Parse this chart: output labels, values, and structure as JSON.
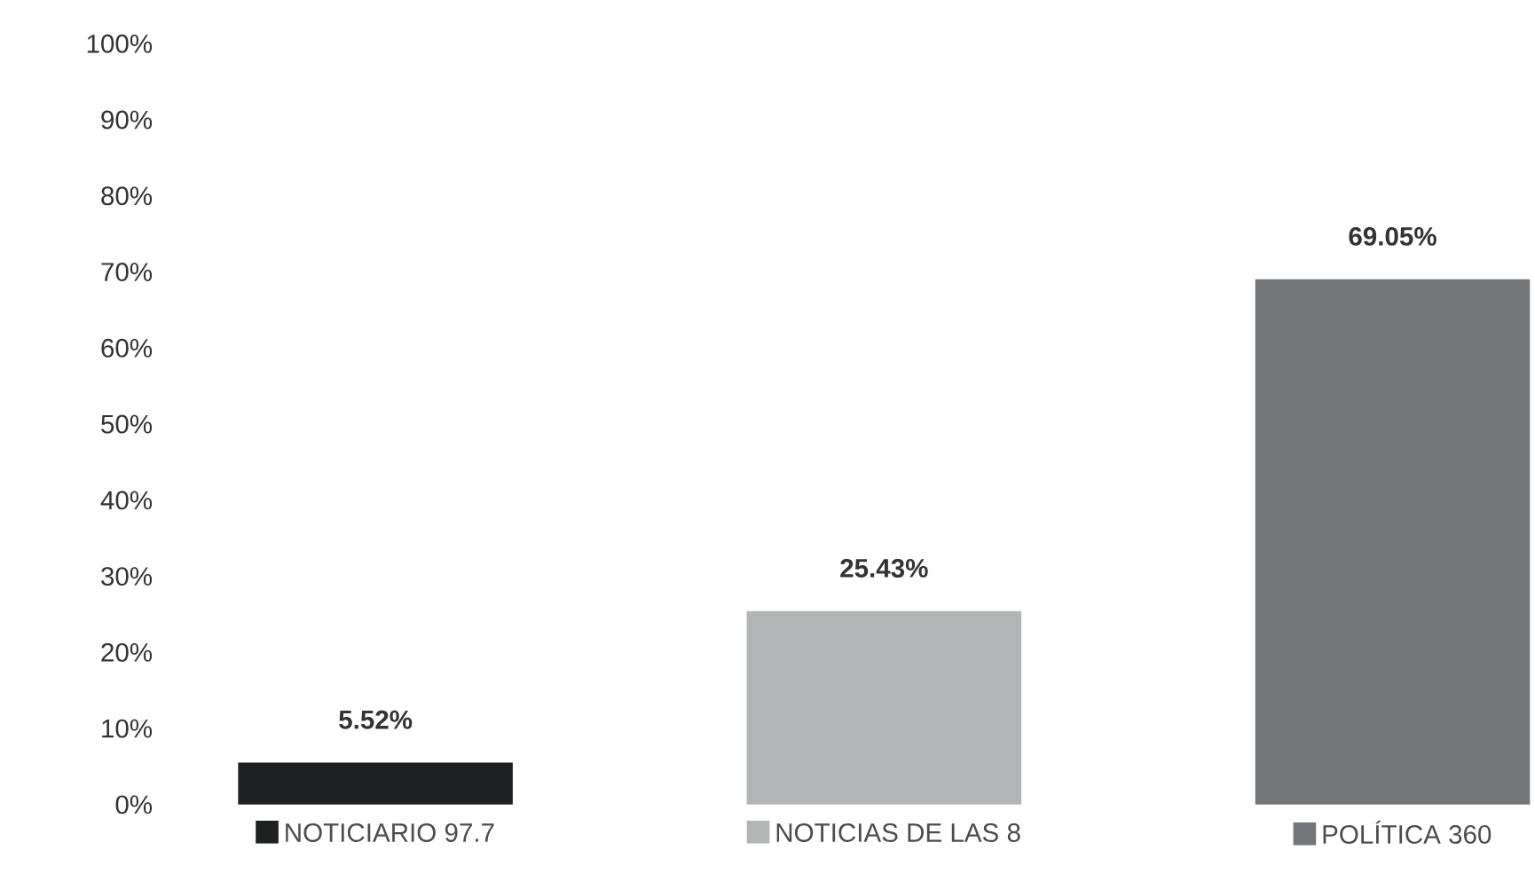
{
  "chart_data": {
    "type": "bar",
    "categories": [
      "NOTICIARIO 97.7",
      "NOTICIAS DE LAS 8",
      "POLÍTICA 360"
    ],
    "values": [
      5.52,
      25.43,
      69.05
    ],
    "colors": [
      "#1e2022",
      "#b2b5b5",
      "#73777a"
    ],
    "ylim": [
      0,
      100
    ],
    "yticks": [
      {
        "value": 0,
        "label": "0%"
      },
      {
        "value": 10,
        "label": "10%"
      },
      {
        "value": 20,
        "label": "20%"
      },
      {
        "value": 30,
        "label": "30%"
      },
      {
        "value": 40,
        "label": "40%"
      },
      {
        "value": 50,
        "label": "50%"
      },
      {
        "value": 60,
        "label": "60%"
      },
      {
        "value": 70,
        "label": "70%"
      },
      {
        "value": 80,
        "label": "80%"
      },
      {
        "value": 90,
        "label": "90%"
      },
      {
        "value": 100,
        "label": "100%"
      }
    ],
    "value_labels": [
      "5.52%",
      "25.43%",
      "69.05%"
    ]
  }
}
